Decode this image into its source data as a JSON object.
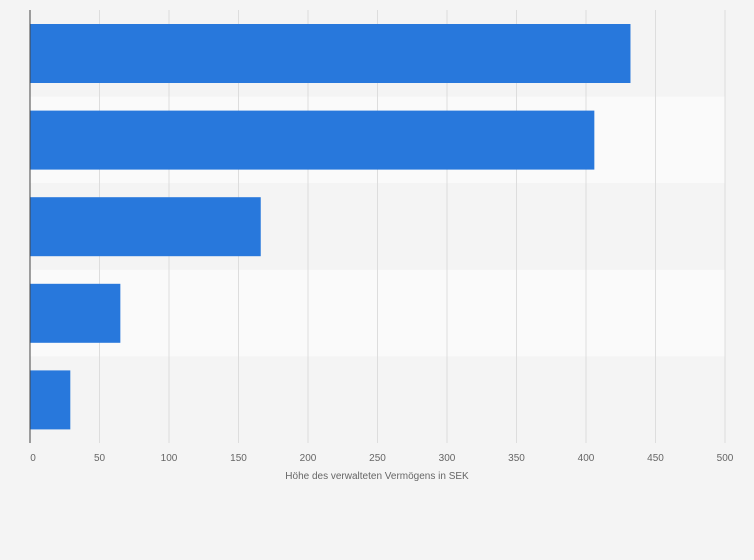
{
  "chart_data": {
    "type": "bar",
    "orientation": "horizontal",
    "categories": [
      "",
      "",
      "",
      "",
      ""
    ],
    "values": [
      432,
      406,
      166,
      65,
      29
    ],
    "xlabel": "Höhe des verwalteten Vermögens in SEK",
    "ylabel": "",
    "xlim": [
      0,
      500
    ],
    "xticks": [
      0,
      50,
      100,
      150,
      200,
      250,
      300,
      350,
      400,
      450,
      500
    ],
    "grid": true,
    "legend": "none",
    "colors": {
      "bar": "#2878dc",
      "background": "#f4f4f4",
      "band_light": "#fafafa",
      "band_dark": "#f4f4f4",
      "gridline": "#dddddd",
      "axis": "#444444",
      "tick_text": "#666666"
    }
  }
}
